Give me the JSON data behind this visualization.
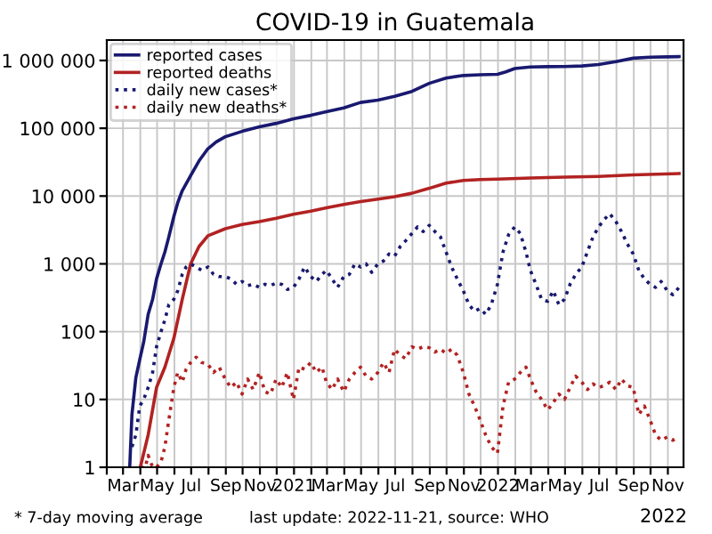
{
  "chart_data": {
    "type": "line",
    "title": "COVID-19 in Guatemala",
    "log": "y",
    "grid": true,
    "legend": "top left",
    "xlim": [
      "2020-02-01",
      "2022-11-29"
    ],
    "ylim": [
      1,
      2000000
    ],
    "yticks": [
      {
        "value": 1,
        "label": "1"
      },
      {
        "value": 10,
        "label": "10"
      },
      {
        "value": 100,
        "label": "100"
      },
      {
        "value": 1000,
        "label": "1 000"
      },
      {
        "value": 10000,
        "label": "10 000"
      },
      {
        "value": 100000,
        "label": "100 000"
      },
      {
        "value": 1000000,
        "label": "1 000 000"
      }
    ],
    "xticks": [
      {
        "value": "2020-02-01",
        "label": null
      },
      {
        "value": "2020-03-01",
        "label": "Mar"
      },
      {
        "value": "2020-04-01",
        "label": null
      },
      {
        "value": "2020-05-01",
        "label": "May"
      },
      {
        "value": "2020-06-01",
        "label": null
      },
      {
        "value": "2020-07-01",
        "label": "Jul"
      },
      {
        "value": "2020-08-01",
        "label": null
      },
      {
        "value": "2020-09-01",
        "label": "Sep"
      },
      {
        "value": "2020-10-01",
        "label": null
      },
      {
        "value": "2020-11-01",
        "label": "Nov"
      },
      {
        "value": "2020-12-01",
        "label": null
      },
      {
        "value": "2021-01-01",
        "label": "2021"
      },
      {
        "value": "2021-02-01",
        "label": null
      },
      {
        "value": "2021-03-01",
        "label": "Mar"
      },
      {
        "value": "2021-04-01",
        "label": null
      },
      {
        "value": "2021-05-01",
        "label": "May"
      },
      {
        "value": "2021-06-01",
        "label": null
      },
      {
        "value": "2021-07-01",
        "label": "Jul"
      },
      {
        "value": "2021-08-01",
        "label": null
      },
      {
        "value": "2021-09-01",
        "label": "Sep"
      },
      {
        "value": "2021-10-01",
        "label": null
      },
      {
        "value": "2021-11-01",
        "label": "Nov"
      },
      {
        "value": "2021-12-01",
        "label": null
      },
      {
        "value": "2022-01-01",
        "label": "2022"
      },
      {
        "value": "2022-02-01",
        "label": null
      },
      {
        "value": "2022-03-01",
        "label": "Mar"
      },
      {
        "value": "2022-04-01",
        "label": null
      },
      {
        "value": "2022-05-01",
        "label": "May"
      },
      {
        "value": "2022-06-01",
        "label": null
      },
      {
        "value": "2022-07-01",
        "label": "Jul"
      },
      {
        "value": "2022-08-01",
        "label": null
      },
      {
        "value": "2022-09-01",
        "label": "Sep"
      },
      {
        "value": "2022-10-01",
        "label": null
      },
      {
        "value": "2022-11-01",
        "label": "Nov"
      }
    ],
    "annotations": [
      "* 7-day moving average",
      "last update: 2022-11-21, source: WHO",
      "2022"
    ],
    "series": [
      {
        "name": "reported cases",
        "color": "#191970",
        "line_style": "solid",
        "x": [
          "2020-03-13",
          "2020-03-17",
          "2020-03-24",
          "2020-03-31",
          "2020-04-07",
          "2020-04-15",
          "2020-04-23",
          "2020-04-30",
          "2020-05-08",
          "2020-05-15",
          "2020-05-22",
          "2020-05-31",
          "2020-06-07",
          "2020-06-15",
          "2020-06-30",
          "2020-07-15",
          "2020-07-31",
          "2020-08-15",
          "2020-08-31",
          "2020-09-30",
          "2020-10-31",
          "2020-11-30",
          "2020-12-31",
          "2021-01-31",
          "2021-02-28",
          "2021-03-31",
          "2021-04-30",
          "2021-05-31",
          "2021-06-30",
          "2021-07-31",
          "2021-08-31",
          "2021-09-30",
          "2021-10-31",
          "2021-11-30",
          "2021-12-31",
          "2022-01-15",
          "2022-01-31",
          "2022-02-28",
          "2022-03-31",
          "2022-04-30",
          "2022-05-31",
          "2022-06-30",
          "2022-07-31",
          "2022-08-31",
          "2022-09-30",
          "2022-10-31",
          "2022-11-21"
        ],
        "values": [
          1,
          6,
          21,
          39,
          70,
          180,
          300,
          600,
          1000,
          1500,
          2500,
          5000,
          8000,
          12000,
          20000,
          33000,
          50000,
          63000,
          75000,
          90000,
          105000,
          118000,
          138000,
          155000,
          175000,
          200000,
          240000,
          260000,
          295000,
          350000,
          460000,
          550000,
          600000,
          615000,
          625000,
          680000,
          760000,
          800000,
          810000,
          815000,
          830000,
          870000,
          960000,
          1080000,
          1120000,
          1130000,
          1140000
        ]
      },
      {
        "name": "reported deaths",
        "color": "#b22222",
        "line_style": "solid",
        "x": [
          "2020-04-01",
          "2020-04-15",
          "2020-04-30",
          "2020-05-15",
          "2020-05-31",
          "2020-06-15",
          "2020-06-30",
          "2020-07-15",
          "2020-07-31",
          "2020-08-31",
          "2020-09-30",
          "2020-10-31",
          "2020-11-30",
          "2020-12-31",
          "2021-01-31",
          "2021-02-28",
          "2021-03-31",
          "2021-04-30",
          "2021-05-31",
          "2021-06-30",
          "2021-07-31",
          "2021-08-31",
          "2021-09-30",
          "2021-10-31",
          "2021-11-30",
          "2021-12-31",
          "2022-02-28",
          "2022-04-30",
          "2022-06-30",
          "2022-08-31",
          "2022-11-21"
        ],
        "values": [
          1,
          3,
          15,
          30,
          80,
          300,
          1000,
          1800,
          2600,
          3300,
          3800,
          4200,
          4700,
          5400,
          6000,
          6700,
          7500,
          8300,
          9000,
          9800,
          11000,
          13000,
          15500,
          17000,
          17500,
          17800,
          18500,
          19000,
          19500,
          20500,
          21500
        ]
      },
      {
        "name": "daily new cases*",
        "color": "#191970",
        "line_style": "dotted",
        "x": [
          "2020-03-17",
          "2020-03-24",
          "2020-03-31",
          "2020-04-07",
          "2020-04-15",
          "2020-04-23",
          "2020-04-30",
          "2020-05-08",
          "2020-05-15",
          "2020-05-22",
          "2020-05-31",
          "2020-06-07",
          "2020-06-15",
          "2020-06-22",
          "2020-06-30",
          "2020-07-10",
          "2020-07-20",
          "2020-07-31",
          "2020-08-10",
          "2020-08-20",
          "2020-08-31",
          "2020-09-10",
          "2020-09-20",
          "2020-09-30",
          "2020-10-10",
          "2020-10-20",
          "2020-10-31",
          "2020-11-10",
          "2020-11-20",
          "2020-11-30",
          "2020-12-10",
          "2020-12-20",
          "2020-12-31",
          "2021-01-10",
          "2021-01-20",
          "2021-01-31",
          "2021-02-10",
          "2021-02-20",
          "2021-02-28",
          "2021-03-10",
          "2021-03-20",
          "2021-03-31",
          "2021-04-10",
          "2021-04-20",
          "2021-04-30",
          "2021-05-10",
          "2021-05-20",
          "2021-05-31",
          "2021-06-10",
          "2021-06-20",
          "2021-06-30",
          "2021-07-10",
          "2021-07-20",
          "2021-07-31",
          "2021-08-10",
          "2021-08-20",
          "2021-08-31",
          "2021-09-10",
          "2021-09-20",
          "2021-09-30",
          "2021-10-10",
          "2021-10-20",
          "2021-10-31",
          "2021-11-10",
          "2021-11-20",
          "2021-11-30",
          "2021-12-10",
          "2021-12-20",
          "2021-12-31",
          "2022-01-10",
          "2022-01-20",
          "2022-01-31",
          "2022-02-10",
          "2022-02-20",
          "2022-02-28",
          "2022-03-10",
          "2022-03-20",
          "2022-03-31",
          "2022-04-10",
          "2022-04-20",
          "2022-04-30",
          "2022-05-10",
          "2022-05-20",
          "2022-05-31",
          "2022-06-10",
          "2022-06-20",
          "2022-06-30",
          "2022-07-10",
          "2022-07-20",
          "2022-07-31",
          "2022-08-10",
          "2022-08-20",
          "2022-08-31",
          "2022-09-10",
          "2022-09-20",
          "2022-09-30",
          "2022-10-10",
          "2022-10-20",
          "2022-10-31",
          "2022-11-10",
          "2022-11-21"
        ],
        "values": [
          2,
          3,
          8,
          10,
          15,
          25,
          60,
          100,
          150,
          250,
          300,
          400,
          700,
          900,
          1000,
          900,
          800,
          900,
          700,
          650,
          650,
          600,
          500,
          550,
          480,
          500,
          450,
          500,
          480,
          520,
          500,
          420,
          450,
          600,
          900,
          650,
          550,
          700,
          800,
          600,
          450,
          650,
          700,
          1000,
          900,
          1000,
          750,
          1000,
          1100,
          1400,
          1300,
          1800,
          2200,
          2800,
          3500,
          3000,
          3700,
          3000,
          2500,
          1500,
          900,
          600,
          400,
          250,
          200,
          220,
          180,
          250,
          500,
          1500,
          2700,
          3500,
          2800,
          1500,
          800,
          500,
          300,
          280,
          400,
          250,
          300,
          500,
          700,
          900,
          1500,
          2500,
          3500,
          4500,
          5500,
          4200,
          3000,
          2000,
          1400,
          800,
          600,
          500,
          450,
          550,
          400,
          350,
          450
        ]
      },
      {
        "name": "daily new deaths*",
        "color": "#b22222",
        "line_style": "dotted",
        "x": [
          "2020-04-01",
          "2020-04-10",
          "2020-04-15",
          "2020-04-23",
          "2020-04-30",
          "2020-05-08",
          "2020-05-15",
          "2020-05-22",
          "2020-05-31",
          "2020-06-07",
          "2020-06-15",
          "2020-06-22",
          "2020-06-30",
          "2020-07-10",
          "2020-07-20",
          "2020-07-31",
          "2020-08-10",
          "2020-08-20",
          "2020-08-31",
          "2020-09-10",
          "2020-09-20",
          "2020-09-30",
          "2020-10-10",
          "2020-10-20",
          "2020-10-31",
          "2020-11-10",
          "2020-11-20",
          "2020-11-30",
          "2020-12-10",
          "2020-12-20",
          "2020-12-31",
          "2021-01-10",
          "2021-01-20",
          "2021-01-31",
          "2021-02-10",
          "2021-02-20",
          "2021-02-28",
          "2021-03-10",
          "2021-03-20",
          "2021-03-31",
          "2021-04-10",
          "2021-04-20",
          "2021-04-30",
          "2021-05-10",
          "2021-05-20",
          "2021-05-31",
          "2021-06-10",
          "2021-06-20",
          "2021-06-30",
          "2021-07-10",
          "2021-07-20",
          "2021-07-31",
          "2021-08-10",
          "2021-08-20",
          "2021-08-31",
          "2021-09-10",
          "2021-09-20",
          "2021-09-30",
          "2021-10-10",
          "2021-10-20",
          "2021-10-31",
          "2021-11-10",
          "2021-11-20",
          "2021-11-30",
          "2021-12-10",
          "2021-12-20",
          "2021-12-31",
          "2022-01-10",
          "2022-01-20",
          "2022-01-31",
          "2022-02-10",
          "2022-02-20",
          "2022-02-28",
          "2022-03-10",
          "2022-03-20",
          "2022-03-31",
          "2022-04-10",
          "2022-04-20",
          "2022-04-30",
          "2022-05-10",
          "2022-05-20",
          "2022-05-31",
          "2022-06-10",
          "2022-06-20",
          "2022-06-30",
          "2022-07-10",
          "2022-07-20",
          "2022-07-31",
          "2022-08-10",
          "2022-08-20",
          "2022-08-31",
          "2022-09-10",
          "2022-09-20",
          "2022-09-30",
          "2022-10-10",
          "2022-10-20",
          "2022-10-31",
          "2022-11-10",
          "2022-11-21"
        ],
        "values": [
          1,
          1,
          1.5,
          1,
          1,
          1.2,
          2,
          5,
          15,
          25,
          18,
          28,
          35,
          42,
          35,
          33,
          25,
          30,
          20,
          15,
          18,
          12,
          20,
          14,
          25,
          13,
          12,
          20,
          15,
          25,
          10,
          30,
          28,
          35,
          25,
          30,
          18,
          14,
          20,
          13,
          20,
          25,
          30,
          22,
          20,
          25,
          35,
          25,
          55,
          45,
          40,
          60,
          55,
          60,
          58,
          50,
          55,
          48,
          55,
          45,
          25,
          12,
          8,
          5,
          3,
          2,
          1.6,
          8,
          18,
          20,
          25,
          30,
          20,
          13,
          10,
          7,
          9,
          12,
          10,
          15,
          22,
          18,
          14,
          17,
          15,
          16,
          18,
          14,
          20,
          16,
          15,
          6,
          8,
          5,
          3,
          2.5,
          2.8,
          2.5,
          2.8
        ]
      }
    ]
  }
}
